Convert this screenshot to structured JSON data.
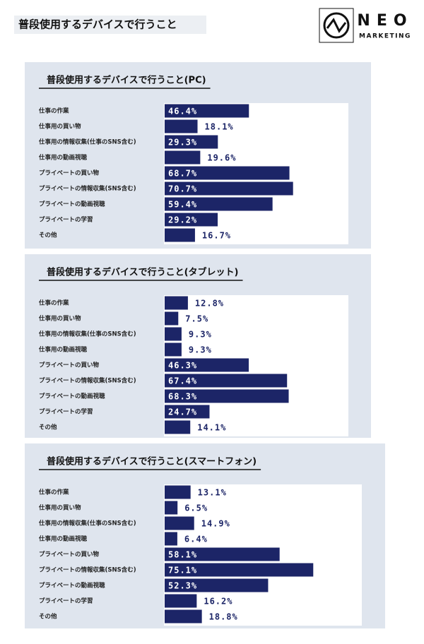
{
  "header": {
    "title": "普段使用するデバイスで行うこと",
    "logo_name": "NEO",
    "logo_sub": "MARKETING"
  },
  "chart_data": [
    {
      "type": "bar",
      "orientation": "horizontal",
      "title": "普段使用するデバイスで行うこと(PC)",
      "color": "#1c2567",
      "categories": [
        "仕事の作業",
        "仕事用の買い物",
        "仕事用の情報収集(仕事のSNS含む)",
        "仕事用の動画視聴",
        "プライベートの買い物",
        "プライベートの情報収集(SNS含む)",
        "プライベートの動画視聴",
        "プライベートの学習",
        "その他"
      ],
      "values": [
        46.4,
        18.1,
        29.3,
        19.6,
        68.7,
        70.7,
        59.4,
        29.2,
        16.7
      ],
      "value_labels": [
        "46.4%",
        "18.1%",
        "29.3%",
        "19.6%",
        "68.7%",
        "70.7%",
        "59.4%",
        "29.2%",
        "16.7%"
      ]
    },
    {
      "type": "bar",
      "orientation": "horizontal",
      "title": "普段使用するデバイスで行うこと(タブレット)",
      "color": "#1c2567",
      "categories": [
        "仕事の作業",
        "仕事用の買い物",
        "仕事用の情報収集(仕事のSNS含む)",
        "仕事用の動画視聴",
        "プライベートの買い物",
        "プライベートの情報収集(SNS含む)",
        "プライベートの動画視聴",
        "プライベートの学習",
        "その他"
      ],
      "values": [
        12.8,
        7.5,
        9.3,
        9.3,
        46.3,
        67.4,
        68.3,
        24.7,
        14.1
      ],
      "value_labels": [
        "12.8%",
        "7.5%",
        "9.3%",
        "9.3%",
        "46.3%",
        "67.4%",
        "68.3%",
        "24.7%",
        "14.1%"
      ]
    },
    {
      "type": "bar",
      "orientation": "horizontal",
      "title": "普段使用するデバイスで行うこと(スマートフォン)",
      "color": "#1c2567",
      "categories": [
        "仕事の作業",
        "仕事用の買い物",
        "仕事用の情報収集(仕事のSNS含む)",
        "仕事用の動画視聴",
        "プライベートの買い物",
        "プライベートの情報収集(SNS含む)",
        "プライベートの動画視聴",
        "プライベートの学習",
        "その他"
      ],
      "values": [
        13.1,
        6.5,
        14.9,
        6.4,
        58.1,
        75.1,
        52.3,
        16.2,
        18.8
      ],
      "value_labels": [
        "13.1%",
        "6.5%",
        "14.9%",
        "6.4%",
        "58.1%",
        "75.1%",
        "52.3%",
        "16.2%",
        "18.8%"
      ]
    }
  ]
}
